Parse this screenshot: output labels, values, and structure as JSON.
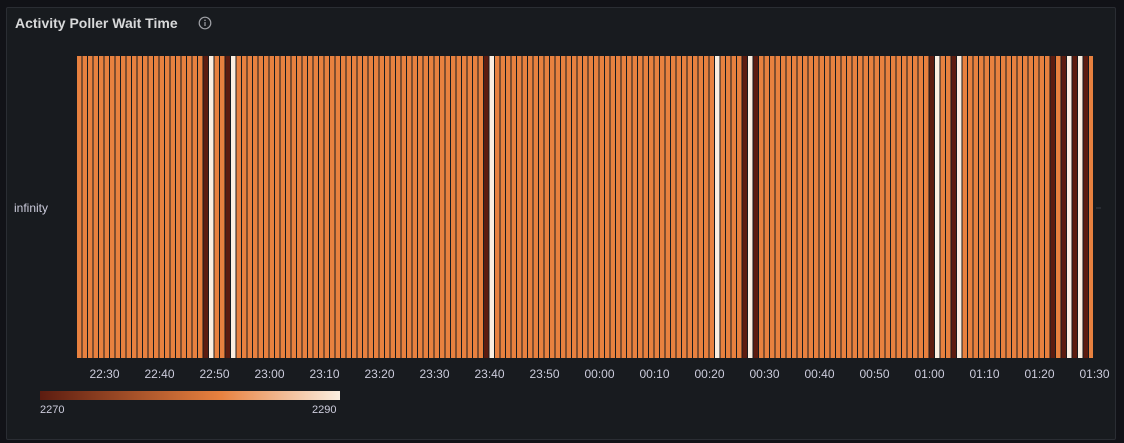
{
  "panel": {
    "title": "Activity Poller Wait Time",
    "info_icon": "info-circle-icon"
  },
  "chart_data": {
    "type": "heatmap",
    "title": "Activity Poller Wait Time",
    "y_categories": [
      "infinity"
    ],
    "x_tick_labels": [
      "22:30",
      "22:40",
      "22:50",
      "23:00",
      "23:10",
      "23:20",
      "23:30",
      "23:40",
      "23:50",
      "00:00",
      "00:10",
      "00:20",
      "00:30",
      "00:40",
      "00:50",
      "01:00",
      "01:10",
      "01:20",
      "01:30"
    ],
    "scale": {
      "min": 2270,
      "max": 2290,
      "min_label": "2270",
      "max_label": "2290"
    },
    "colors": {
      "low": "#5c1c10",
      "mid": "#e8813f",
      "high": "#fbeee0"
    },
    "x_range_minutes_from_first_tick": [
      -5,
      182
    ],
    "default_value": 2282,
    "cell_interval_minutes": 1,
    "anomalies": [
      {
        "minute": 18,
        "value": 2270
      },
      {
        "minute": 19,
        "value": 2290
      },
      {
        "minute": 22,
        "value": 2270
      },
      {
        "minute": 23,
        "value": 2290
      },
      {
        "minute": 69,
        "value": 2270
      },
      {
        "minute": 70,
        "value": 2290
      },
      {
        "minute": 111,
        "value": 2290
      },
      {
        "minute": 116,
        "value": 2270
      },
      {
        "minute": 117,
        "value": 2290
      },
      {
        "minute": 118,
        "value": 2270
      },
      {
        "minute": 150,
        "value": 2270
      },
      {
        "minute": 151,
        "value": 2290
      },
      {
        "minute": 154,
        "value": 2270
      },
      {
        "minute": 155,
        "value": 2290
      },
      {
        "minute": 172,
        "value": 2270
      },
      {
        "minute": 174,
        "value": 2270
      },
      {
        "minute": 175,
        "value": 2290
      },
      {
        "minute": 176,
        "value": 2270
      },
      {
        "minute": 177,
        "value": 2290
      },
      {
        "minute": 178,
        "value": 2270
      }
    ],
    "legend": {
      "placement": "bottom-left"
    }
  }
}
